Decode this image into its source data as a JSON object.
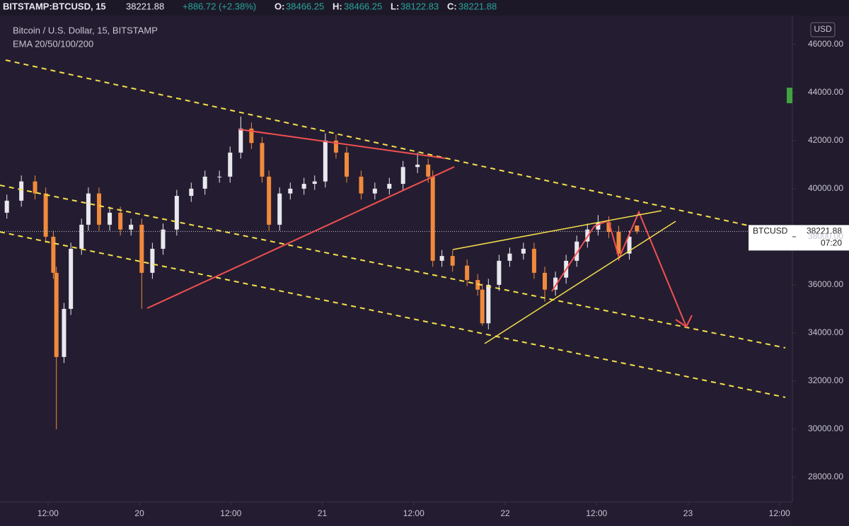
{
  "header": {
    "symbol": "BITSTAMP:BTCUSD, 15",
    "last": "38221.88",
    "change": "+886.72 (+2.38%)",
    "o_label": "O:",
    "o": "38466.25",
    "h_label": "H:",
    "h": "38466.25",
    "l_label": "L:",
    "l": "38122.83",
    "c_label": "C:",
    "c": "38221.88"
  },
  "legend": {
    "title": "Bitcoin / U.S. Dollar, 15, BITSTAMP",
    "indicator": "EMA 20/50/100/200"
  },
  "price_tag": {
    "symbol": "BTCUSD",
    "price": "38221.88",
    "countdown": "07:20"
  },
  "chart_data": {
    "type": "candlestick",
    "currency": "USD",
    "up_color": "#e8e8ee",
    "down_color": "#f08a3c",
    "x": [
      6.6,
      8.5,
      10.3,
      11.7,
      12.7,
      13.1,
      14.1,
      15.0,
      16.4,
      17.3,
      18.7,
      20.1,
      21.5,
      22.9,
      24.3,
      25.7,
      27.1,
      28.9,
      30.8,
      32.6,
      34.5,
      35.9,
      37.3,
      38.7,
      40.1,
      41.0,
      42.4,
      43.8,
      45.6,
      47.0,
      48.4,
      49.8,
      51.2,
      53.1,
      54.9,
      56.8,
      58.6,
      60.5,
      61.9,
      62.5,
      63.7,
      65.1,
      67.0,
      68.4,
      69.0,
      69.8,
      71.2,
      72.6,
      74.4,
      75.8,
      77.2,
      78.6,
      80.0,
      81.4,
      82.8,
      84.2,
      85.6,
      86.9,
      88.3,
      89.3
    ],
    "open": [
      39000,
      39500,
      40300,
      39800,
      38000,
      36500,
      33000,
      35000,
      37500,
      38500,
      39800,
      38500,
      39000,
      38300,
      38500,
      36500,
      37500,
      38300,
      39700,
      40000,
      40500,
      40500,
      41500,
      42500,
      41900,
      40500,
      38500,
      39800,
      40000,
      40200,
      40300,
      42000,
      41500,
      40500,
      39800,
      40000,
      40200,
      40900,
      41000,
      40500,
      37000,
      37200,
      36800,
      36200,
      35800,
      34400,
      36000,
      37000,
      37300,
      37500,
      36500,
      35800,
      36300,
      37000,
      37800,
      38300,
      38600,
      38200,
      37300,
      38466.25
    ],
    "high": [
      39750,
      40550,
      40550,
      40050,
      38250,
      36750,
      35250,
      37750,
      38750,
      40050,
      40050,
      39250,
      39250,
      38750,
      38750,
      37750,
      38550,
      39950,
      40250,
      40750,
      40750,
      41750,
      43000,
      42750,
      42150,
      40750,
      40050,
      40250,
      40450,
      40550,
      42300,
      42250,
      41750,
      40750,
      40250,
      40450,
      41150,
      41500,
      41250,
      40750,
      37450,
      37450,
      37050,
      36450,
      36050,
      36250,
      37250,
      37550,
      37750,
      37750,
      36750,
      36550,
      37250,
      38050,
      38550,
      38900,
      38850,
      38450,
      38250,
      38466.25
    ],
    "low": [
      38750,
      39250,
      39550,
      37750,
      36250,
      30000,
      32750,
      34750,
      37250,
      38250,
      38250,
      38250,
      38050,
      38050,
      35000,
      36250,
      37250,
      38050,
      39450,
      39750,
      40250,
      40250,
      41250,
      41650,
      40250,
      38250,
      38250,
      39550,
      39750,
      39950,
      40050,
      41250,
      40250,
      39550,
      39550,
      39750,
      39950,
      40650,
      40250,
      36750,
      36750,
      36550,
      35950,
      35550,
      34300,
      34150,
      35750,
      36750,
      37050,
      36250,
      35300,
      35550,
      36050,
      36750,
      37550,
      38050,
      37950,
      37000,
      37050,
      38122.83
    ],
    "close": [
      39500,
      40300,
      39800,
      38000,
      36500,
      33000,
      35000,
      37500,
      38500,
      39800,
      38500,
      39000,
      38300,
      38500,
      36500,
      37500,
      38300,
      39700,
      40000,
      40500,
      40500,
      41500,
      42500,
      41900,
      40500,
      38500,
      39800,
      40000,
      40200,
      40300,
      42000,
      41500,
      40500,
      39800,
      40000,
      40200,
      40900,
      41000,
      40500,
      37000,
      37200,
      36800,
      36200,
      35800,
      34400,
      36000,
      37000,
      37300,
      37500,
      36500,
      35800,
      36300,
      37000,
      37800,
      38300,
      38600,
      38200,
      37300,
      38000,
      38221.88
    ],
    "xlim": [
      5.7,
      109.7
    ],
    "xticks": [
      {
        "value": 12,
        "label": "12:00"
      },
      {
        "value": 24,
        "label": "20"
      },
      {
        "value": 36,
        "label": "12:00"
      },
      {
        "value": 48,
        "label": "21"
      },
      {
        "value": 60,
        "label": "12:00"
      },
      {
        "value": 72,
        "label": "22"
      },
      {
        "value": 84,
        "label": "12:00"
      },
      {
        "value": 96,
        "label": "23"
      },
      {
        "value": 108,
        "label": "12:00"
      }
    ],
    "ylim": [
      26970,
      47200
    ],
    "yticks": [
      {
        "value": 28000,
        "label": "28000.00"
      },
      {
        "value": 30000,
        "label": "30000.00"
      },
      {
        "value": 32000,
        "label": "32000.00"
      },
      {
        "value": 34000,
        "label": "34000.00"
      },
      {
        "value": 36000,
        "label": "36000.00"
      },
      {
        "value": 38000,
        "label": "38000.00"
      },
      {
        "value": 40000,
        "label": "40000.00"
      },
      {
        "value": 42000,
        "label": "42000.00"
      },
      {
        "value": 44000,
        "label": "44000.00"
      },
      {
        "value": 46000,
        "label": "46000.00"
      }
    ],
    "grid": false
  }
}
